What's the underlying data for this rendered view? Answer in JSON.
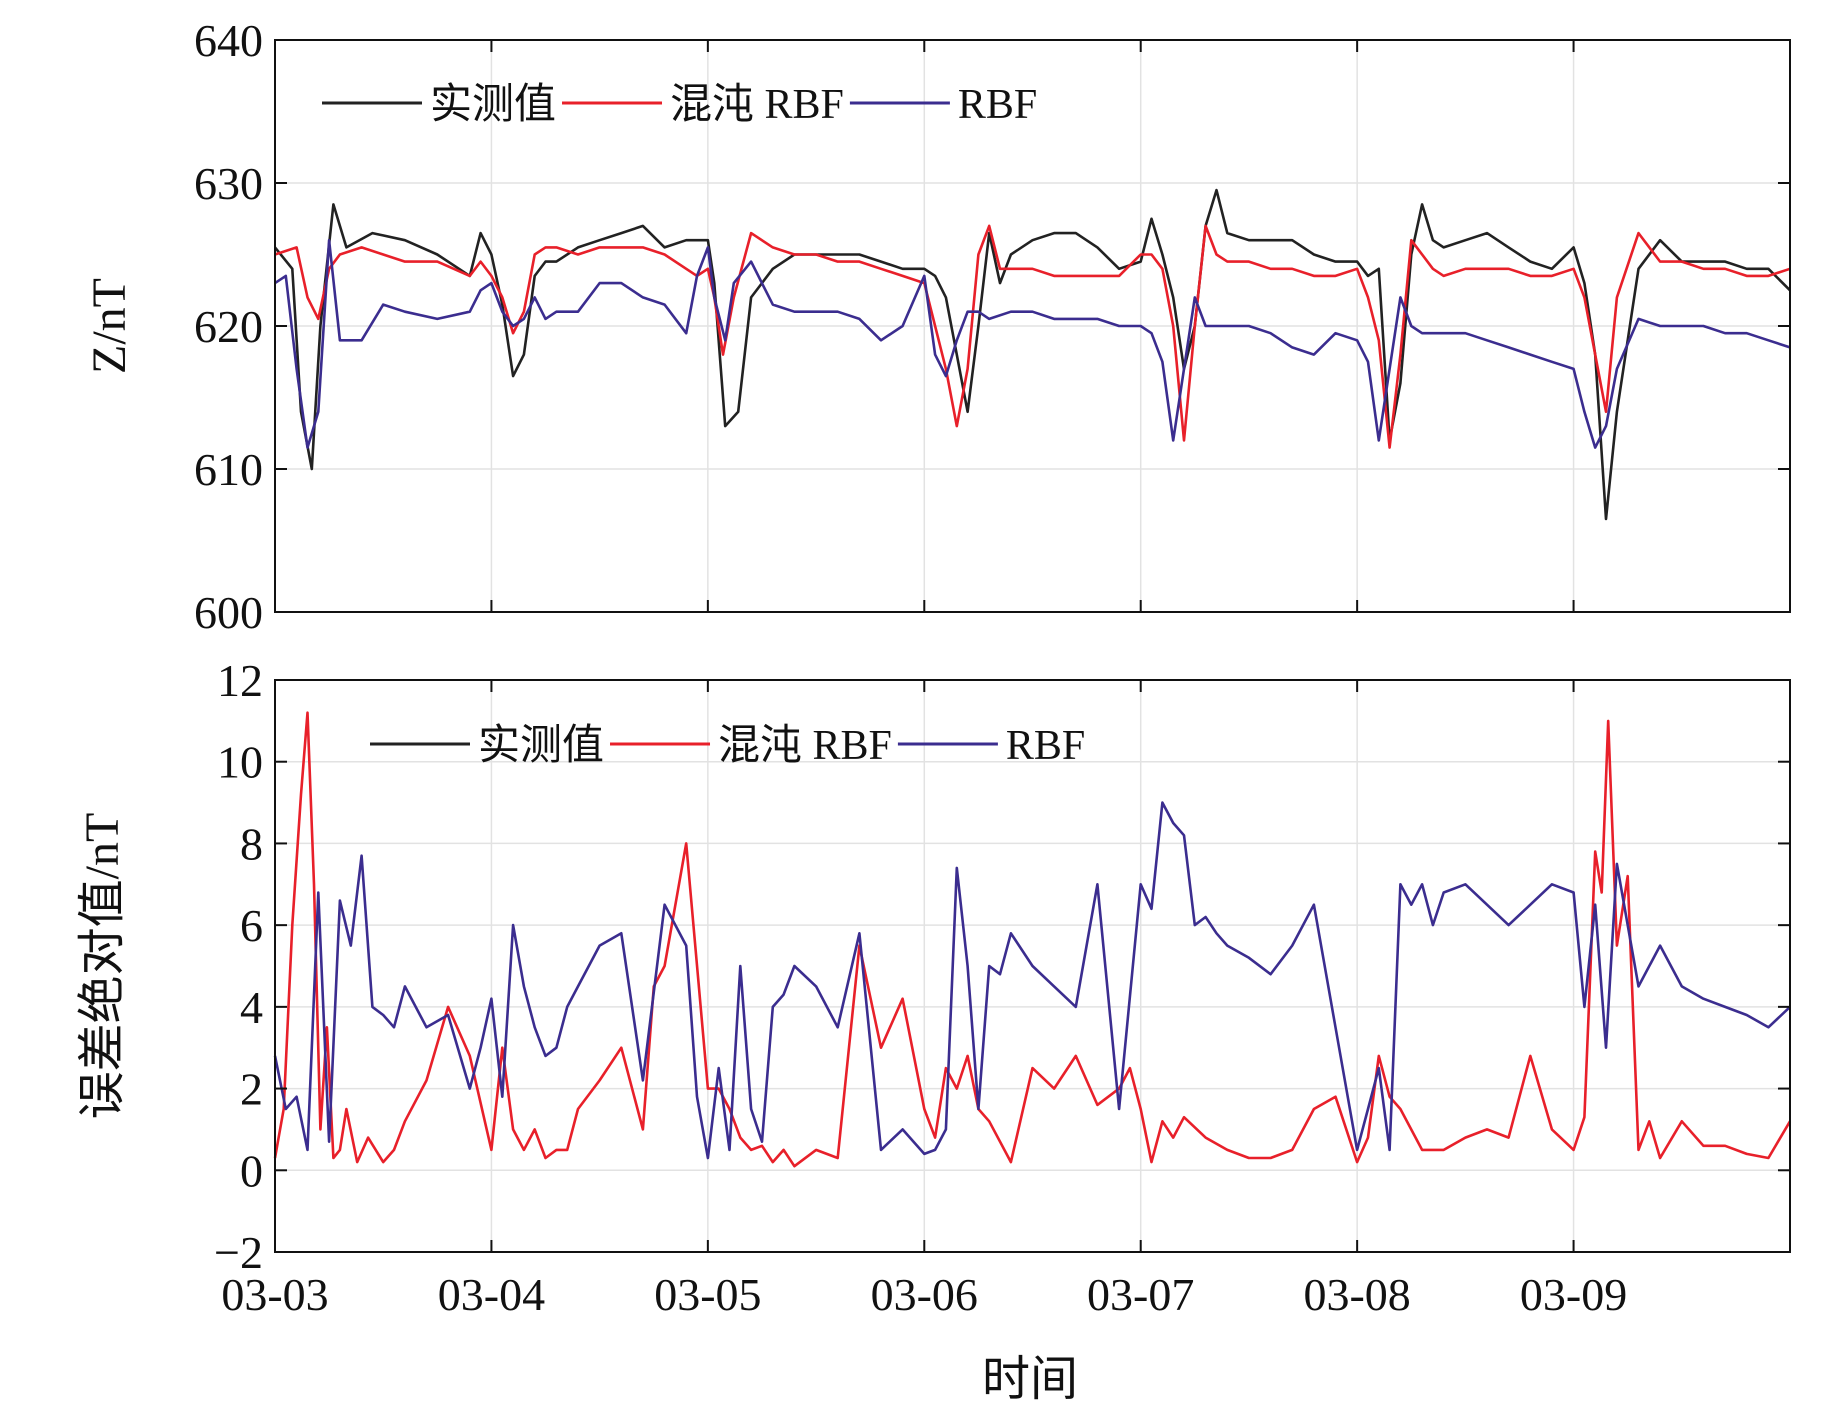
{
  "xlabel": "时间",
  "x_tick_labels": [
    "03-03",
    "03-04",
    "03-05",
    "03-06",
    "03-07",
    "03-08",
    "03-09"
  ],
  "chart_data": [
    {
      "type": "line",
      "title": "",
      "xlabel": "时间",
      "ylabel": "Z/nT",
      "xlim": [
        0,
        7
      ],
      "ylim": [
        600,
        640
      ],
      "yticks": [
        600,
        610,
        620,
        630,
        640
      ],
      "x_ticks": [
        0,
        1,
        2,
        3,
        4,
        5,
        6
      ],
      "x_tick_labels": [
        "03-03",
        "03-04",
        "03-05",
        "03-06",
        "03-07",
        "03-08",
        "03-09"
      ],
      "grid": true,
      "legend": {
        "placement": "top-left",
        "entries": [
          "实测值",
          "混沌 RBF",
          "RBF"
        ]
      },
      "series": [
        {
          "name": "实测值",
          "color": "#222222",
          "x": [
            0,
            0.08,
            0.12,
            0.17,
            0.21,
            0.27,
            0.33,
            0.45,
            0.6,
            0.75,
            0.9,
            0.95,
            1.0,
            1.05,
            1.1,
            1.15,
            1.2,
            1.25,
            1.3,
            1.4,
            1.5,
            1.6,
            1.7,
            1.8,
            1.9,
            1.95,
            2.0,
            2.03,
            2.08,
            2.14,
            2.2,
            2.3,
            2.4,
            2.5,
            2.6,
            2.7,
            2.8,
            2.9,
            3.0,
            3.05,
            3.1,
            3.15,
            3.2,
            3.25,
            3.3,
            3.35,
            3.4,
            3.5,
            3.6,
            3.7,
            3.8,
            3.9,
            4.0,
            4.05,
            4.1,
            4.15,
            4.2,
            4.25,
            4.3,
            4.35,
            4.4,
            4.5,
            4.6,
            4.7,
            4.8,
            4.9,
            5.0,
            5.05,
            5.1,
            5.15,
            5.2,
            5.25,
            5.3,
            5.35,
            5.4,
            5.5,
            5.6,
            5.7,
            5.8,
            5.9,
            6.0,
            6.05,
            6.1,
            6.15,
            6.2,
            6.3,
            6.4,
            6.5,
            6.6,
            6.7,
            6.8,
            6.9,
            7.0
          ],
          "y": [
            625.5,
            624,
            614,
            610,
            620,
            628.5,
            625.5,
            626.5,
            626,
            625,
            623.5,
            626.5,
            625,
            621.5,
            616.5,
            618,
            623.5,
            624.5,
            624.5,
            625.5,
            626,
            626.5,
            627,
            625.5,
            626,
            626,
            626,
            623,
            613,
            614,
            622,
            624,
            625,
            625,
            625,
            625,
            624.5,
            624,
            624,
            623.5,
            622,
            618,
            614,
            620,
            626.5,
            623,
            625,
            626,
            626.5,
            626.5,
            625.5,
            624,
            624.5,
            627.5,
            625,
            622,
            617,
            620,
            627,
            629.5,
            626.5,
            626,
            626,
            626,
            625,
            624.5,
            624.5,
            623.5,
            624,
            612,
            616,
            625,
            628.5,
            626,
            625.5,
            626,
            626.5,
            625.5,
            624.5,
            624,
            625.5,
            623,
            618,
            606.5,
            614,
            624,
            626,
            624.5,
            624.5,
            624.5,
            624,
            624,
            622.5
          ]
        },
        {
          "name": "混沌 RBF",
          "color": "#e8202a",
          "x": [
            0,
            0.1,
            0.15,
            0.2,
            0.25,
            0.3,
            0.4,
            0.5,
            0.6,
            0.75,
            0.9,
            0.95,
            1.0,
            1.05,
            1.1,
            1.15,
            1.2,
            1.25,
            1.3,
            1.4,
            1.5,
            1.6,
            1.7,
            1.8,
            1.9,
            1.95,
            2.0,
            2.03,
            2.07,
            2.12,
            2.2,
            2.3,
            2.4,
            2.5,
            2.6,
            2.7,
            2.8,
            2.9,
            3.0,
            3.05,
            3.1,
            3.15,
            3.2,
            3.25,
            3.3,
            3.35,
            3.4,
            3.5,
            3.6,
            3.7,
            3.8,
            3.9,
            4.0,
            4.05,
            4.1,
            4.15,
            4.2,
            4.25,
            4.3,
            4.35,
            4.4,
            4.5,
            4.6,
            4.7,
            4.8,
            4.9,
            5.0,
            5.05,
            5.1,
            5.15,
            5.2,
            5.25,
            5.3,
            5.35,
            5.4,
            5.5,
            5.6,
            5.7,
            5.8,
            5.9,
            6.0,
            6.05,
            6.1,
            6.15,
            6.2,
            6.3,
            6.4,
            6.5,
            6.6,
            6.7,
            6.8,
            6.9,
            7.0
          ],
          "y": [
            625,
            625.5,
            622,
            620.5,
            624,
            625,
            625.5,
            625,
            624.5,
            624.5,
            623.5,
            624.5,
            623.5,
            622,
            619.5,
            621,
            625,
            625.5,
            625.5,
            625,
            625.5,
            625.5,
            625.5,
            625,
            624,
            623.5,
            624,
            622,
            618,
            622,
            626.5,
            625.5,
            625,
            625,
            624.5,
            624.5,
            624,
            623.5,
            623,
            620,
            617,
            613,
            617,
            625,
            627,
            624,
            624,
            624,
            623.5,
            623.5,
            623.5,
            623.5,
            625,
            625,
            624,
            620,
            612,
            620,
            627,
            625,
            624.5,
            624.5,
            624,
            624,
            623.5,
            623.5,
            624,
            622,
            619,
            611.5,
            618,
            626,
            625,
            624,
            623.5,
            624,
            624,
            624,
            623.5,
            623.5,
            624,
            622,
            618,
            614,
            622,
            626.5,
            624.5,
            624.5,
            624,
            624,
            623.5,
            623.5,
            624
          ]
        },
        {
          "name": "RBF",
          "color": "#3b2d8f",
          "x": [
            0,
            0.05,
            0.1,
            0.15,
            0.2,
            0.25,
            0.3,
            0.4,
            0.5,
            0.6,
            0.75,
            0.9,
            0.95,
            1.0,
            1.05,
            1.1,
            1.15,
            1.2,
            1.25,
            1.3,
            1.4,
            1.5,
            1.6,
            1.7,
            1.8,
            1.9,
            1.95,
            2.0,
            2.03,
            2.08,
            2.12,
            2.2,
            2.3,
            2.4,
            2.5,
            2.6,
            2.7,
            2.8,
            2.9,
            3.0,
            3.05,
            3.1,
            3.15,
            3.2,
            3.25,
            3.3,
            3.4,
            3.5,
            3.6,
            3.7,
            3.8,
            3.9,
            4.0,
            4.05,
            4.1,
            4.15,
            4.2,
            4.25,
            4.3,
            4.35,
            4.4,
            4.5,
            4.6,
            4.7,
            4.8,
            4.9,
            5.0,
            5.05,
            5.1,
            5.15,
            5.2,
            5.25,
            5.3,
            5.35,
            5.4,
            5.5,
            5.6,
            5.7,
            5.8,
            5.9,
            6.0,
            6.05,
            6.1,
            6.15,
            6.2,
            6.3,
            6.4,
            6.5,
            6.6,
            6.7,
            6.8,
            6.9,
            7.0
          ],
          "y": [
            623,
            623.5,
            617,
            611.5,
            614,
            626,
            619,
            619,
            621.5,
            621,
            620.5,
            621,
            622.5,
            623,
            621,
            620,
            620.5,
            622,
            620.5,
            621,
            621,
            623,
            623,
            622,
            621.5,
            619.5,
            623.5,
            625.5,
            622,
            619,
            623,
            624.5,
            621.5,
            621,
            621,
            621,
            620.5,
            619,
            620,
            623.5,
            618,
            616.5,
            619,
            621,
            621,
            620.5,
            621,
            621,
            620.5,
            620.5,
            620.5,
            620,
            620,
            619.5,
            617.5,
            612,
            617,
            622,
            620,
            620,
            620,
            620,
            619.5,
            618.5,
            618,
            619.5,
            619,
            617.5,
            612,
            617,
            622,
            620,
            619.5,
            619.5,
            619.5,
            619.5,
            619,
            618.5,
            618,
            617.5,
            617,
            614,
            611.5,
            613,
            617,
            620.5,
            620,
            620,
            620,
            619.5,
            619.5,
            619,
            618.5
          ]
        }
      ]
    },
    {
      "type": "line",
      "title": "",
      "xlabel": "时间",
      "ylabel": "误差绝对值/nT",
      "xlim": [
        0,
        7
      ],
      "ylim": [
        -2,
        12
      ],
      "yticks": [
        -2,
        0,
        2,
        4,
        6,
        8,
        10,
        12
      ],
      "y_tick_labels": [
        "−2",
        "0",
        "2",
        "4",
        "6",
        "8",
        "10",
        "12"
      ],
      "x_ticks": [
        0,
        1,
        2,
        3,
        4,
        5,
        6
      ],
      "x_tick_labels": [
        "03-03",
        "03-04",
        "03-05",
        "03-06",
        "03-07",
        "03-08",
        "03-09"
      ],
      "grid": true,
      "legend": {
        "placement": "top-left",
        "entries": [
          "实测值",
          "混沌 RBF",
          "RBF"
        ]
      },
      "series": [
        {
          "name": "实测值",
          "color": "#222222",
          "x": [],
          "y": []
        },
        {
          "name": "混沌 RBF",
          "color": "#e8202a",
          "x": [
            0,
            0.04,
            0.08,
            0.12,
            0.15,
            0.18,
            0.21,
            0.24,
            0.27,
            0.3,
            0.33,
            0.38,
            0.43,
            0.5,
            0.55,
            0.6,
            0.7,
            0.8,
            0.9,
            1.0,
            1.05,
            1.1,
            1.15,
            1.2,
            1.25,
            1.3,
            1.35,
            1.4,
            1.5,
            1.6,
            1.7,
            1.75,
            1.8,
            1.9,
            2.0,
            2.05,
            2.1,
            2.15,
            2.2,
            2.25,
            2.3,
            2.35,
            2.4,
            2.5,
            2.6,
            2.7,
            2.8,
            2.9,
            3.0,
            3.05,
            3.1,
            3.15,
            3.2,
            3.25,
            3.3,
            3.4,
            3.5,
            3.6,
            3.7,
            3.8,
            3.9,
            3.95,
            4.0,
            4.05,
            4.1,
            4.15,
            4.2,
            4.3,
            4.4,
            4.5,
            4.6,
            4.7,
            4.8,
            4.9,
            5.0,
            5.05,
            5.1,
            5.15,
            5.2,
            5.3,
            5.4,
            5.5,
            5.6,
            5.7,
            5.8,
            5.9,
            6.0,
            6.05,
            6.1,
            6.13,
            6.16,
            6.2,
            6.25,
            6.3,
            6.35,
            6.4,
            6.5,
            6.6,
            6.7,
            6.8,
            6.9,
            7.0
          ],
          "y": [
            0.3,
            1.5,
            6,
            9.2,
            11.2,
            7,
            1,
            3.5,
            0.3,
            0.5,
            1.5,
            0.2,
            0.8,
            0.2,
            0.5,
            1.2,
            2.2,
            4,
            2.8,
            0.5,
            3,
            1,
            0.5,
            1,
            0.3,
            0.5,
            0.5,
            1.5,
            2.2,
            3,
            1,
            4.5,
            5,
            8,
            2,
            2,
            1.5,
            0.8,
            0.5,
            0.6,
            0.2,
            0.5,
            0.1,
            0.5,
            0.3,
            5.5,
            3,
            4.2,
            1.5,
            0.8,
            2.5,
            2,
            2.8,
            1.5,
            1.2,
            0.2,
            2.5,
            2,
            2.8,
            1.6,
            2,
            2.5,
            1.5,
            0.2,
            1.2,
            0.8,
            1.3,
            0.8,
            0.5,
            0.3,
            0.3,
            0.5,
            1.5,
            1.8,
            0.2,
            0.8,
            2.8,
            1.8,
            1.5,
            0.5,
            0.5,
            0.8,
            1,
            0.8,
            2.8,
            1,
            0.5,
            1.3,
            7.8,
            6.8,
            11,
            5.5,
            7.2,
            0.5,
            1.2,
            0.3,
            1.2,
            0.6,
            0.6,
            0.4,
            0.3,
            1.2
          ]
        },
        {
          "name": "RBF",
          "color": "#3b2d8f",
          "x": [
            0,
            0.05,
            0.1,
            0.15,
            0.2,
            0.25,
            0.3,
            0.35,
            0.4,
            0.45,
            0.5,
            0.55,
            0.6,
            0.7,
            0.8,
            0.9,
            0.95,
            1.0,
            1.05,
            1.1,
            1.15,
            1.2,
            1.25,
            1.3,
            1.35,
            1.4,
            1.5,
            1.6,
            1.7,
            1.8,
            1.9,
            1.95,
            2.0,
            2.05,
            2.1,
            2.15,
            2.2,
            2.25,
            2.3,
            2.35,
            2.4,
            2.5,
            2.6,
            2.7,
            2.8,
            2.9,
            3.0,
            3.05,
            3.1,
            3.15,
            3.2,
            3.25,
            3.3,
            3.35,
            3.4,
            3.5,
            3.6,
            3.7,
            3.8,
            3.9,
            4.0,
            4.05,
            4.1,
            4.15,
            4.2,
            4.25,
            4.3,
            4.35,
            4.4,
            4.5,
            4.6,
            4.7,
            4.8,
            4.9,
            5.0,
            5.05,
            5.1,
            5.15,
            5.2,
            5.25,
            5.3,
            5.35,
            5.4,
            5.5,
            5.6,
            5.7,
            5.8,
            5.9,
            6.0,
            6.05,
            6.1,
            6.15,
            6.2,
            6.25,
            6.3,
            6.4,
            6.5,
            6.6,
            6.7,
            6.8,
            6.9,
            7.0
          ],
          "y": [
            2.8,
            1.5,
            1.8,
            0.5,
            6.8,
            0.7,
            6.6,
            5.5,
            7.7,
            4,
            3.8,
            3.5,
            4.5,
            3.5,
            3.8,
            2,
            3,
            4.2,
            1.8,
            6,
            4.5,
            3.5,
            2.8,
            3,
            4,
            4.5,
            5.5,
            5.8,
            2.2,
            6.5,
            5.5,
            1.8,
            0.3,
            2.5,
            0.5,
            5,
            1.5,
            0.7,
            4,
            4.3,
            5,
            4.5,
            3.5,
            5.8,
            0.5,
            1,
            0.4,
            0.5,
            1,
            7.4,
            5,
            1.5,
            5,
            4.8,
            5.8,
            5,
            4.5,
            4,
            7,
            1.5,
            7,
            6.4,
            9,
            8.5,
            8.2,
            6,
            6.2,
            5.8,
            5.5,
            5.2,
            4.8,
            5.5,
            6.5,
            3.5,
            0.5,
            1.5,
            2.5,
            0.5,
            7,
            6.5,
            7,
            6,
            6.8,
            7,
            6.5,
            6,
            6.5,
            7,
            6.8,
            4,
            6.5,
            3,
            7.5,
            6,
            4.5,
            5.5,
            4.5,
            4.2,
            4,
            3.8,
            3.5,
            4
          ]
        }
      ]
    }
  ]
}
